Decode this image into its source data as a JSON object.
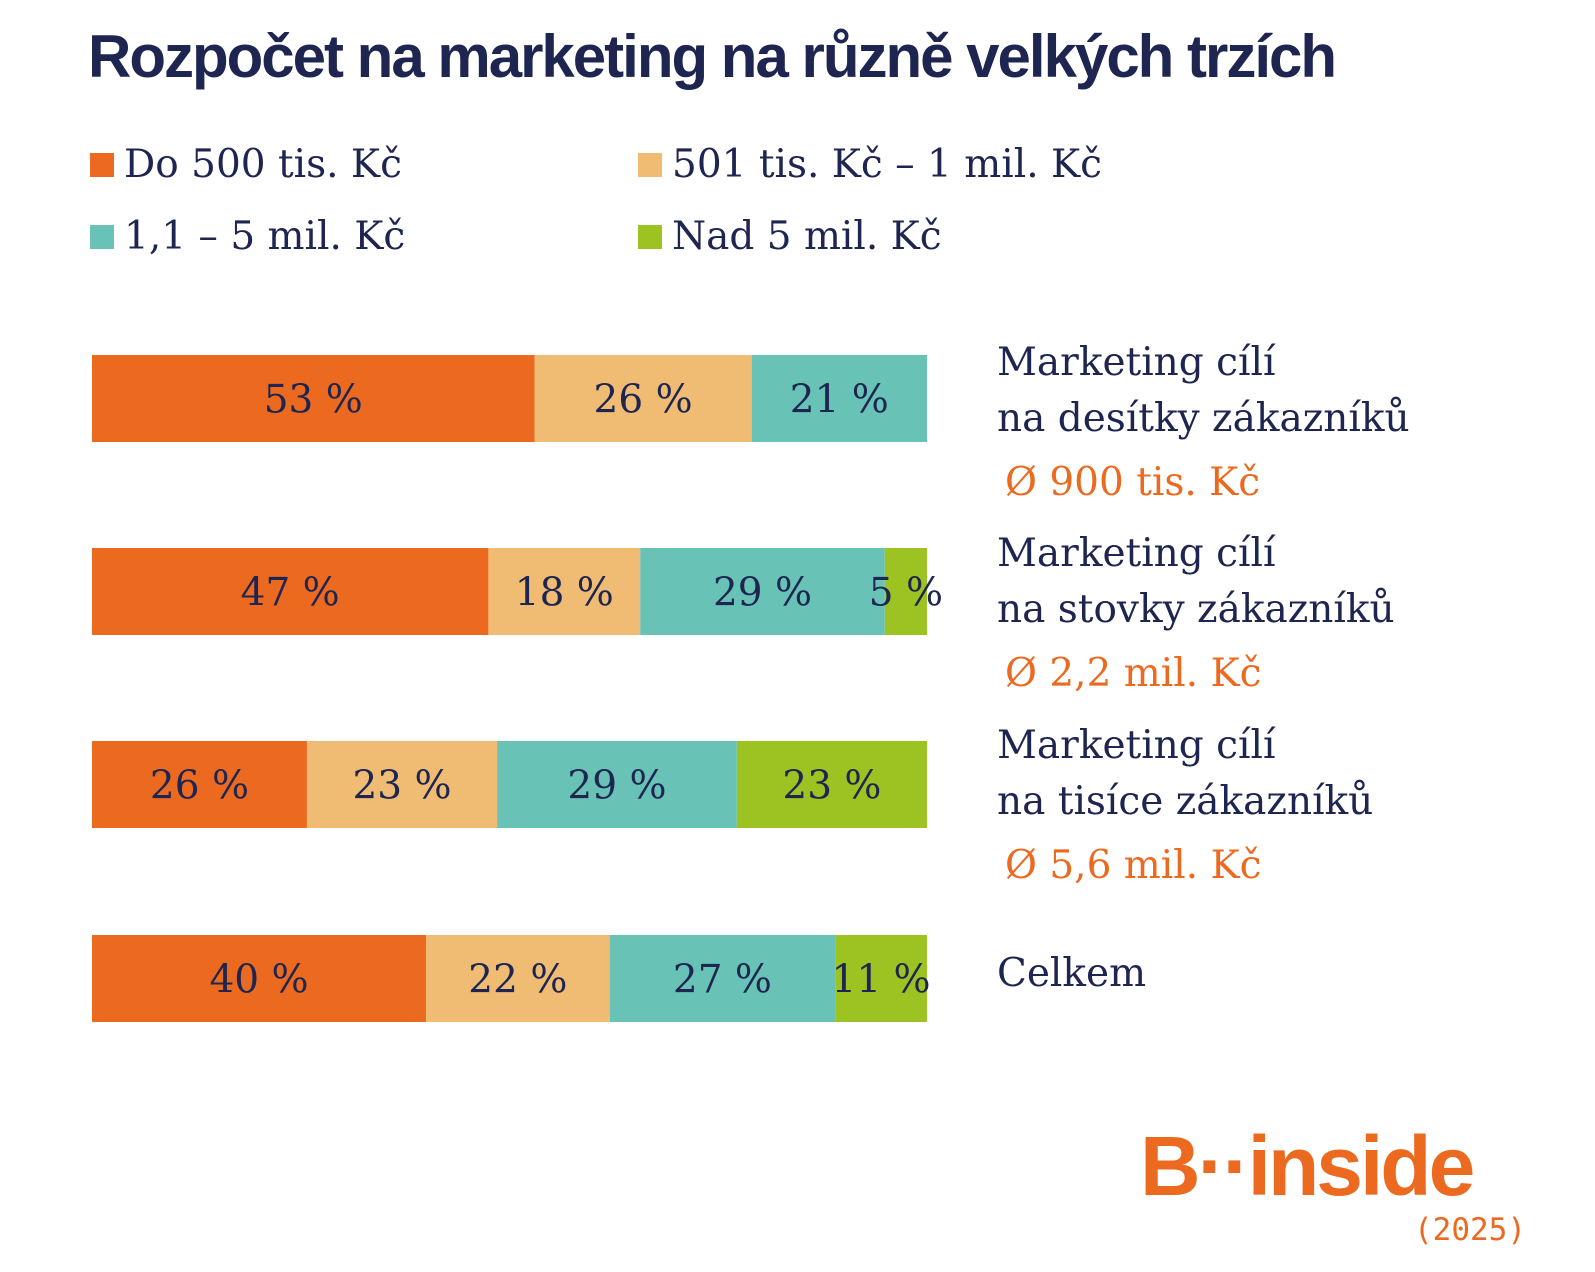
{
  "title": "Rozpočet na marketing na různě velkých trzích",
  "logo": "B··inside",
  "year": "(2025)",
  "colors": {
    "text": "#1d2550",
    "accent": "#ec6a1f"
  },
  "chart_data": {
    "type": "bar",
    "orientation": "horizontal",
    "stacked": true,
    "title": "Rozpočet na marketing na různě velkých trzích",
    "legend_position": "top",
    "categories": [
      {
        "label": [
          "Marketing cílí",
          "na desítky zákazníků"
        ],
        "average": "Ø 900 tis. Kč"
      },
      {
        "label": [
          "Marketing cílí",
          "na stovky zákazníků"
        ],
        "average": "Ø 2,2 mil. Kč"
      },
      {
        "label": [
          "Marketing cílí",
          "na tisíce zákazníků"
        ],
        "average": "Ø 5,6 mil. Kč"
      },
      {
        "label": [
          "Celkem"
        ],
        "average": ""
      }
    ],
    "series": [
      {
        "name": "Do 500 tis. Kč",
        "color": "#ec6a1f",
        "values": [
          53,
          47,
          26,
          40
        ]
      },
      {
        "name": "501 tis. Kč – 1 mil. Kč",
        "color": "#f0bc74",
        "values": [
          26,
          18,
          23,
          22
        ]
      },
      {
        "name": "1,1 – 5 mil. Kč",
        "color": "#68c2b6",
        "values": [
          21,
          29,
          29,
          27
        ]
      },
      {
        "name": "Nad 5 mil. Kč",
        "color": "#9dc322",
        "values": [
          0,
          5,
          23,
          11
        ]
      }
    ],
    "value_suffix": " %"
  }
}
